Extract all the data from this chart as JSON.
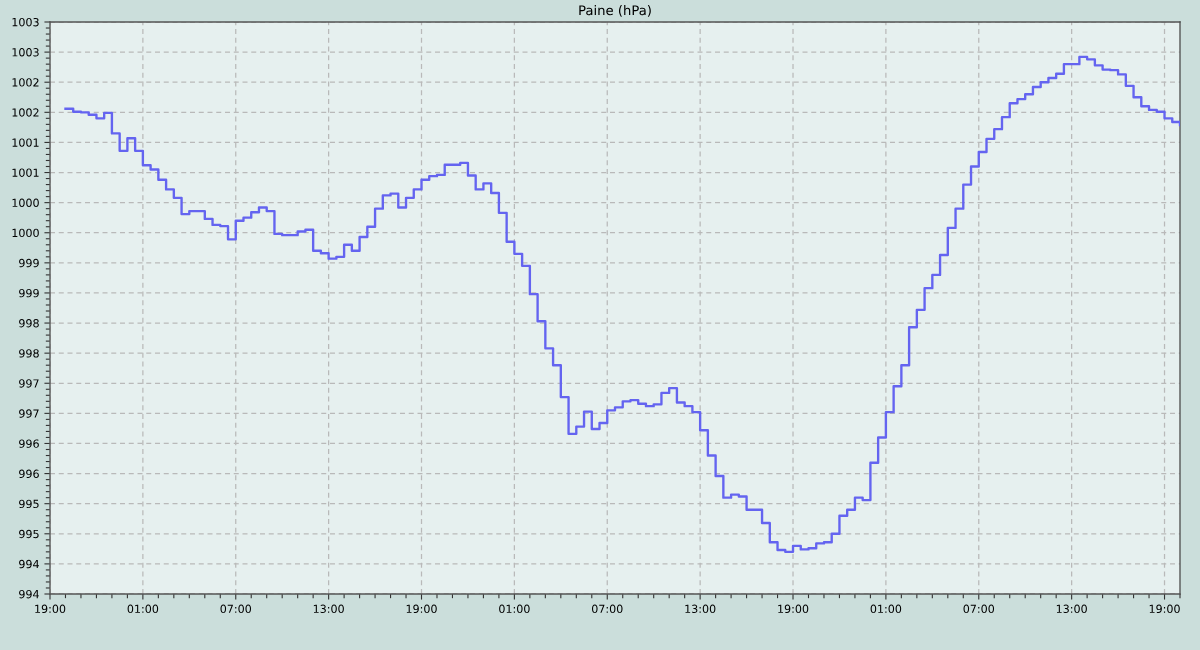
{
  "chart_data": {
    "type": "step",
    "title": "Paine (hPa)",
    "color": "#6464f0",
    "grid": true,
    "categories": [
      "19:00",
      null,
      null,
      null,
      null,
      null,
      null,
      null,
      null,
      null,
      null,
      null,
      "01:00",
      null,
      null,
      null,
      null,
      null,
      null,
      null,
      null,
      null,
      null,
      null,
      "07:00",
      null,
      null,
      null,
      null,
      null,
      null,
      null,
      null,
      null,
      null,
      null,
      "13:00",
      null,
      null,
      null,
      null,
      null,
      null,
      null,
      null,
      null,
      null,
      null,
      "19:00",
      null,
      null,
      null,
      null,
      null,
      null,
      null,
      null,
      null,
      null,
      null,
      "01:00",
      null,
      null,
      null,
      null,
      null,
      null,
      null,
      null,
      null,
      null,
      null,
      "07:00",
      null,
      null,
      null,
      null,
      null,
      null,
      null,
      null,
      null,
      null,
      null,
      "13:00",
      null,
      null,
      null,
      null,
      null,
      null,
      null,
      null,
      null,
      null,
      null,
      "19:00",
      null,
      null,
      null,
      null,
      null,
      null,
      null,
      null,
      null,
      null,
      null,
      "01:00",
      null,
      null,
      null,
      null,
      null,
      null,
      null,
      null,
      null,
      null,
      null,
      "07:00",
      null,
      null,
      null,
      null,
      null,
      null,
      null,
      null,
      null,
      null,
      null,
      "13:00",
      null,
      null,
      null,
      null,
      null,
      null,
      null,
      null,
      null,
      null,
      null,
      "19:00",
      null,
      null
    ],
    "ylim": [
      994,
      1003.5
    ],
    "yticks": [
      994,
      {
        "value": 994.5,
        "label": "994"
      },
      995,
      {
        "value": 995.5,
        "label": "995"
      },
      996,
      {
        "value": 996.5,
        "label": "996"
      },
      997,
      {
        "value": 997.5,
        "label": "997"
      },
      998,
      {
        "value": 998.5,
        "label": "998"
      },
      999,
      {
        "value": 999.5,
        "label": "999"
      },
      1000,
      {
        "value": 1000.5,
        "label": "1000"
      },
      1001,
      {
        "value": 1001.5,
        "label": "1001"
      },
      1002,
      {
        "value": 1002.5,
        "label": "1002"
      },
      1003,
      {
        "value": 1003.5,
        "label": "1003"
      }
    ],
    "values": [
      null,
      null,
      1002.06,
      1002.01,
      1002.0,
      1001.96,
      1001.9,
      1001.99,
      1001.65,
      1001.36,
      1001.57,
      1001.36,
      1001.12,
      1001.05,
      1000.88,
      1000.72,
      1000.58,
      1000.31,
      1000.36,
      1000.36,
      1000.23,
      1000.13,
      1000.11,
      999.89,
      1000.2,
      1000.25,
      1000.34,
      1000.42,
      1000.36,
      999.98,
      999.96,
      999.96,
      1000.02,
      1000.05,
      999.7,
      999.66,
      999.57,
      999.6,
      999.8,
      999.7,
      999.93,
      1000.1,
      1000.4,
      1000.62,
      1000.65,
      1000.42,
      1000.58,
      1000.72,
      1000.88,
      1000.94,
      1000.96,
      1001.13,
      1001.13,
      1001.16,
      1000.95,
      1000.72,
      1000.82,
      1000.66,
      1000.33,
      999.85,
      999.65,
      999.45,
      998.98,
      998.53,
      998.08,
      997.8,
      997.27,
      996.66,
      996.78,
      997.03,
      996.74,
      996.84,
      997.05,
      997.1,
      997.2,
      997.22,
      997.16,
      997.12,
      997.15,
      997.34,
      997.42,
      997.18,
      997.12,
      997.02,
      996.72,
      996.3,
      995.96,
      995.6,
      995.65,
      995.62,
      995.4,
      995.4,
      995.18,
      994.86,
      994.73,
      994.7,
      994.8,
      994.74,
      994.76,
      994.84,
      994.86,
      995.0,
      995.3,
      995.4,
      995.6,
      995.56,
      996.18,
      996.6,
      997.02,
      997.45,
      997.8,
      998.43,
      998.72,
      999.08,
      999.3,
      999.63,
      1000.08,
      1000.4,
      1000.8,
      1001.1,
      1001.34,
      1001.56,
      1001.72,
      1001.92,
      1002.15,
      1002.22,
      1002.3,
      1002.42,
      1002.5,
      1002.57,
      1002.64,
      1002.8,
      1002.8,
      1002.92,
      1002.88,
      1002.78,
      1002.71,
      1002.7,
      1002.63,
      1002.44,
      1002.25,
      1002.1,
      1002.04,
      1002.01,
      1001.9,
      1001.84,
      1001.79
    ]
  }
}
